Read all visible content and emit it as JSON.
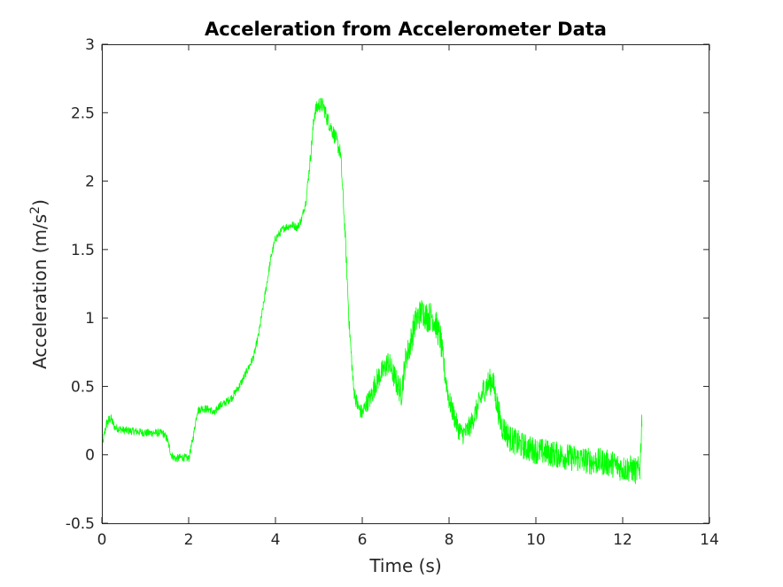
{
  "chart_data": {
    "type": "line",
    "title": "Acceleration from Accelerometer Data",
    "xlabel": "Time (s)",
    "ylabel_main": "Acceleration (m/s",
    "ylabel_sup": "2",
    "ylabel_end": ")",
    "xlim": [
      0,
      14
    ],
    "ylim": [
      -0.5,
      3
    ],
    "xticks": [
      0,
      2,
      4,
      6,
      8,
      10,
      12,
      14
    ],
    "xtick_labels": [
      "0",
      "2",
      "4",
      "6",
      "8",
      "10",
      "12",
      "14"
    ],
    "yticks": [
      -0.5,
      0,
      0.5,
      1,
      1.5,
      2,
      2.5,
      3
    ],
    "ytick_labels": [
      "-0.5",
      "0",
      "0.5",
      "1",
      "1.5",
      "2",
      "2.5",
      "3"
    ],
    "grid": false,
    "series": [
      {
        "color": "#00ff00",
        "x": [
          0,
          0.1,
          0.2,
          0.3,
          0.5,
          0.8,
          1.0,
          1.2,
          1.4,
          1.5,
          1.6,
          1.7,
          1.8,
          1.9,
          2.0,
          2.1,
          2.2,
          2.3,
          2.5,
          2.6,
          2.7,
          2.8,
          3.0,
          3.2,
          3.4,
          3.5,
          3.6,
          3.7,
          3.8,
          3.9,
          4.0,
          4.2,
          4.4,
          4.5,
          4.6,
          4.7,
          4.8,
          4.9,
          5.0,
          5.1,
          5.2,
          5.3,
          5.4,
          5.5,
          5.6,
          5.7,
          5.8,
          5.9,
          6.0,
          6.1,
          6.2,
          6.3,
          6.4,
          6.5,
          6.6,
          6.7,
          6.8,
          6.9,
          7.0,
          7.1,
          7.2,
          7.3,
          7.4,
          7.5,
          7.6,
          7.7,
          7.8,
          7.9,
          8.0,
          8.1,
          8.2,
          8.3,
          8.4,
          8.5,
          8.6,
          8.7,
          8.8,
          8.9,
          9.0,
          9.1,
          9.2,
          9.4,
          9.6,
          9.8,
          10.0,
          10.2,
          10.5,
          10.8,
          11.0,
          11.3,
          11.5,
          11.8,
          12.0,
          12.2,
          12.3,
          12.4,
          12.45
        ],
        "y": [
          0.05,
          0.22,
          0.27,
          0.2,
          0.18,
          0.17,
          0.16,
          0.16,
          0.16,
          0.12,
          0.0,
          -0.03,
          -0.02,
          -0.02,
          -0.03,
          0.12,
          0.32,
          0.34,
          0.33,
          0.3,
          0.36,
          0.37,
          0.42,
          0.52,
          0.65,
          0.72,
          0.86,
          1.05,
          1.25,
          1.45,
          1.58,
          1.66,
          1.68,
          1.66,
          1.72,
          1.85,
          2.15,
          2.5,
          2.56,
          2.55,
          2.45,
          2.38,
          2.3,
          2.2,
          1.65,
          0.95,
          0.48,
          0.35,
          0.3,
          0.38,
          0.42,
          0.52,
          0.58,
          0.62,
          0.68,
          0.6,
          0.52,
          0.45,
          0.7,
          0.8,
          0.95,
          1.02,
          1.05,
          1.0,
          1.02,
          0.95,
          0.85,
          0.6,
          0.4,
          0.3,
          0.2,
          0.15,
          0.17,
          0.22,
          0.3,
          0.38,
          0.48,
          0.52,
          0.55,
          0.38,
          0.22,
          0.12,
          0.08,
          0.05,
          0.03,
          0.02,
          0.0,
          -0.02,
          -0.03,
          -0.05,
          -0.05,
          -0.07,
          -0.1,
          -0.1,
          -0.12,
          -0.1,
          0.35
        ],
        "noise": [
          0.03,
          0.04,
          0.04,
          0.03,
          0.03,
          0.03,
          0.03,
          0.03,
          0.03,
          0.03,
          0.03,
          0.03,
          0.03,
          0.03,
          0.03,
          0.03,
          0.03,
          0.03,
          0.03,
          0.03,
          0.03,
          0.03,
          0.03,
          0.03,
          0.03,
          0.03,
          0.03,
          0.03,
          0.03,
          0.03,
          0.03,
          0.03,
          0.03,
          0.03,
          0.03,
          0.03,
          0.05,
          0.06,
          0.06,
          0.06,
          0.06,
          0.06,
          0.06,
          0.06,
          0.06,
          0.06,
          0.06,
          0.06,
          0.06,
          0.07,
          0.08,
          0.09,
          0.09,
          0.09,
          0.09,
          0.09,
          0.1,
          0.1,
          0.1,
          0.11,
          0.11,
          0.11,
          0.11,
          0.11,
          0.11,
          0.11,
          0.11,
          0.09,
          0.08,
          0.08,
          0.08,
          0.08,
          0.08,
          0.08,
          0.08,
          0.09,
          0.1,
          0.1,
          0.1,
          0.1,
          0.1,
          0.1,
          0.1,
          0.1,
          0.1,
          0.1,
          0.1,
          0.1,
          0.1,
          0.1,
          0.1,
          0.1,
          0.1,
          0.1,
          0.1,
          0.1,
          0.1
        ]
      }
    ]
  }
}
